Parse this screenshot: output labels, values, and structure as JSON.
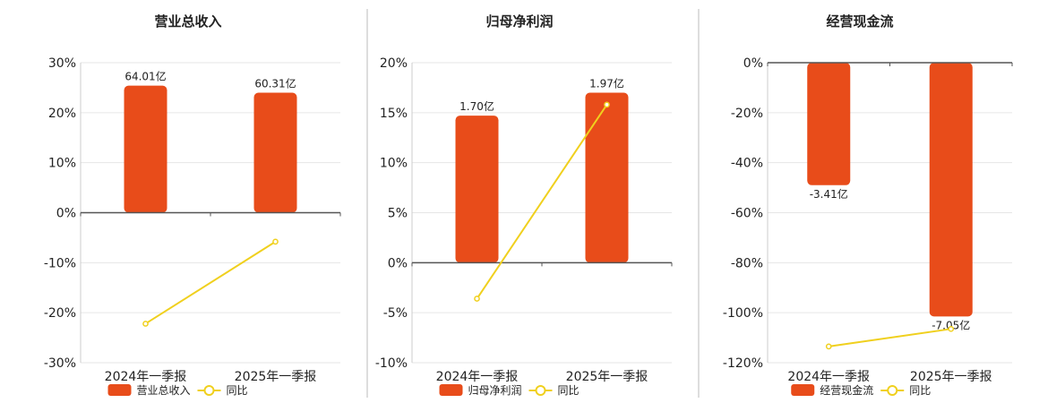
{
  "colors": {
    "bar": "#e84c1a",
    "line": "#f0d01e",
    "grid": "#e6e6e6",
    "axis": "#555555",
    "text": "#222222",
    "divider": "#bbbbbb"
  },
  "chart_data": [
    {
      "type": "bar",
      "title": "营业总收入",
      "categories": [
        "2024年一季报",
        "2025年一季报"
      ],
      "series": [
        {
          "name": "营业总收入",
          "kind": "bar",
          "values": [
            25.4,
            24.0
          ],
          "labels": [
            "64.01亿",
            "60.31亿"
          ]
        },
        {
          "name": "同比",
          "kind": "line",
          "values": [
            -22.2,
            -5.8
          ]
        }
      ],
      "ylim": [
        -30,
        30
      ],
      "yticks": [
        30,
        20,
        10,
        0,
        -10,
        -20,
        -30
      ],
      "ytick_labels": [
        "30%",
        "20%",
        "10%",
        "0%",
        "-10%",
        "-20%",
        "-30%"
      ],
      "grid": true,
      "legend_position": "bottom"
    },
    {
      "type": "bar",
      "title": "归母净利润",
      "categories": [
        "2024年一季报",
        "2025年一季报"
      ],
      "series": [
        {
          "name": "归母净利润",
          "kind": "bar",
          "values": [
            14.7,
            17.0
          ],
          "labels": [
            "1.70亿",
            "1.97亿"
          ]
        },
        {
          "name": "同比",
          "kind": "line",
          "values": [
            -3.6,
            15.8
          ]
        }
      ],
      "ylim": [
        -10,
        20
      ],
      "yticks": [
        20,
        15,
        10,
        5,
        0,
        -5,
        -10
      ],
      "ytick_labels": [
        "20%",
        "15%",
        "10%",
        "5%",
        "0%",
        "-5%",
        "-10%"
      ],
      "grid": true,
      "legend_position": "bottom"
    },
    {
      "type": "bar",
      "title": "经营现金流",
      "categories": [
        "2024年一季报",
        "2025年一季报"
      ],
      "series": [
        {
          "name": "经营现金流",
          "kind": "bar",
          "values": [
            -49.0,
            -101.5
          ],
          "labels": [
            "-3.41亿",
            "-7.05亿"
          ]
        },
        {
          "name": "同比",
          "kind": "line",
          "values": [
            -113.5,
            -106.5
          ]
        }
      ],
      "ylim": [
        -120,
        0
      ],
      "yticks": [
        0,
        -20,
        -40,
        -60,
        -80,
        -100,
        -120
      ],
      "ytick_labels": [
        "0%",
        "-20%",
        "-40%",
        "-60%",
        "-80%",
        "-100%",
        "-120%"
      ],
      "grid": true,
      "legend_position": "bottom"
    }
  ]
}
